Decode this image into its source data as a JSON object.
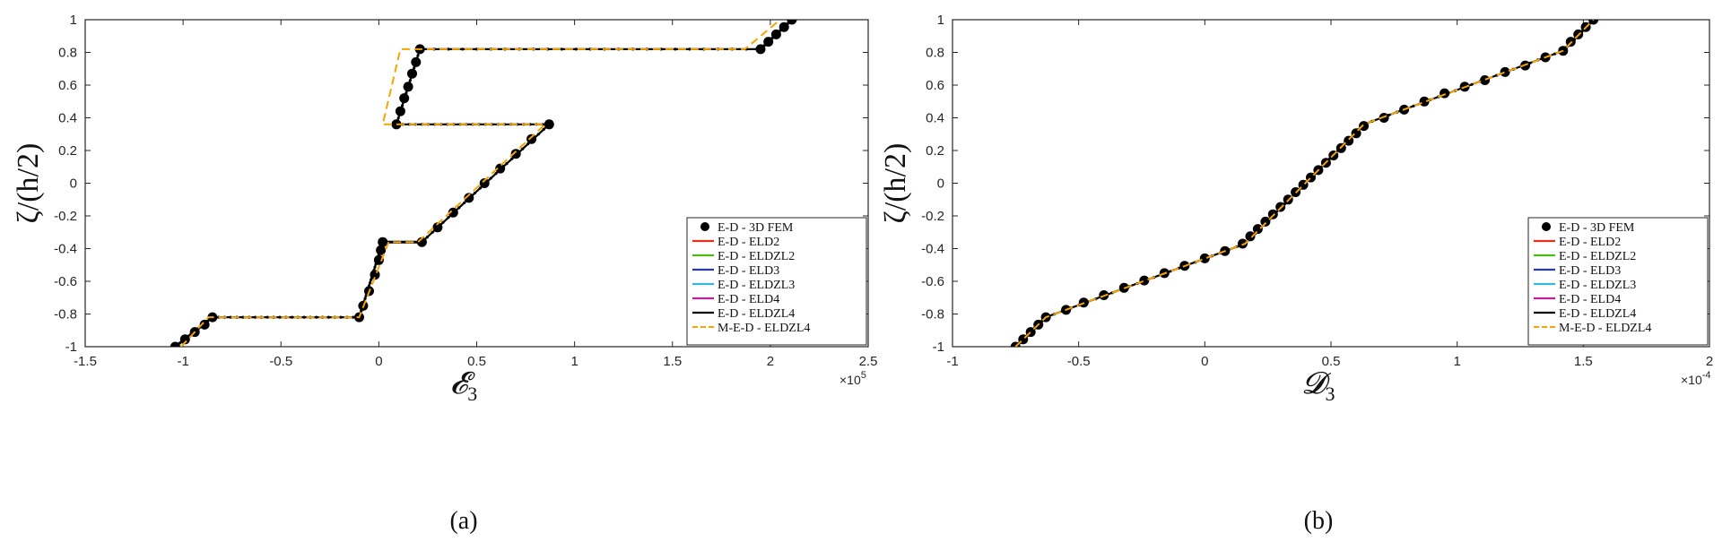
{
  "chart_data": [
    {
      "type": "line",
      "panel_label": "(a)",
      "xlabel": "𝓔",
      "xlabel_sub": "3",
      "ylabel": "ζ/(h/2)",
      "xlim": [
        -1.5,
        2.5
      ],
      "ylim": [
        -1,
        1
      ],
      "xticks": [
        -1.5,
        -1,
        -0.5,
        0,
        0.5,
        1,
        1.5,
        2,
        2.5
      ],
      "xtick_labels": [
        "-1.5",
        "-1",
        "-0.5",
        "0",
        "0.5",
        "1",
        "1.5",
        "2",
        "2.5"
      ],
      "yticks": [
        -1,
        -0.8,
        -0.6,
        -0.4,
        -0.2,
        0,
        0.2,
        0.4,
        0.6,
        0.8,
        1
      ],
      "ytick_labels": [
        "-1",
        "-0.8",
        "-0.6",
        "-0.4",
        "-0.2",
        "0",
        "0.2",
        "0.4",
        "0.6",
        "0.8",
        "1"
      ],
      "x_exponent_base": "×10",
      "x_exponent": "5",
      "grid": false,
      "legend_position": "bottom-right",
      "legend": [
        "E-D - 3D FEM",
        "E-D - ELD2",
        "E-D - ELDZL2",
        "E-D - ELD3",
        "E-D - ELDZL3",
        "E-D - ELD4",
        "E-D - ELDZL4",
        "M-E-D - ELDZL4"
      ],
      "series": [
        {
          "name": "E-D - 3D FEM",
          "style": "markers",
          "color": "#000000",
          "x": [
            -1.04,
            -0.99,
            -0.94,
            -0.89,
            -0.85,
            -0.1,
            -0.08,
            -0.05,
            -0.02,
            0.0,
            0.01,
            0.02,
            0.22,
            0.3,
            0.38,
            0.46,
            0.54,
            0.62,
            0.7,
            0.78,
            0.87,
            0.09,
            0.11,
            0.13,
            0.15,
            0.17,
            0.19,
            0.21,
            1.95,
            1.99,
            2.03,
            2.07,
            2.11
          ],
          "y": [
            -1,
            -0.955,
            -0.91,
            -0.865,
            -0.82,
            -0.82,
            -0.75,
            -0.66,
            -0.56,
            -0.47,
            -0.41,
            -0.36,
            -0.36,
            -0.27,
            -0.18,
            -0.09,
            0.0,
            0.09,
            0.18,
            0.27,
            0.36,
            0.36,
            0.44,
            0.52,
            0.59,
            0.67,
            0.74,
            0.82,
            0.82,
            0.865,
            0.91,
            0.955,
            1.0
          ]
        },
        {
          "name": "E-D - ELDZL4",
          "style": "solid",
          "color": "#000000",
          "x": [
            -1.04,
            -0.85,
            -0.1,
            0.02,
            0.22,
            0.87,
            0.09,
            0.21,
            1.95,
            2.11
          ],
          "y": [
            -1,
            -0.82,
            -0.82,
            -0.36,
            -0.36,
            0.36,
            0.36,
            0.82,
            0.82,
            1.0
          ]
        },
        {
          "name": "M-E-D - ELDZL4",
          "style": "dashed",
          "color": "#f5a300",
          "x": [
            -1.01,
            -0.87,
            -0.1,
            0.05,
            0.2,
            0.85,
            0.02,
            0.11,
            1.87,
            2.05
          ],
          "y": [
            -1,
            -0.82,
            -0.82,
            -0.36,
            -0.36,
            0.36,
            0.36,
            0.82,
            0.82,
            1.0
          ]
        }
      ]
    },
    {
      "type": "line",
      "panel_label": "(b)",
      "xlabel": "𝓓",
      "xlabel_sub": "3",
      "ylabel": "ζ/(h/2)",
      "xlim": [
        -1,
        2
      ],
      "ylim": [
        -1,
        1
      ],
      "xticks": [
        -1,
        -0.5,
        0,
        0.5,
        1,
        1.5,
        2
      ],
      "xtick_labels": [
        "-1",
        "-0.5",
        "0",
        "0.5",
        "1",
        "1.5",
        "2"
      ],
      "yticks": [
        -1,
        -0.8,
        -0.6,
        -0.4,
        -0.2,
        0,
        0.2,
        0.4,
        0.6,
        0.8,
        1
      ],
      "ytick_labels": [
        "-1",
        "-0.8",
        "-0.6",
        "-0.4",
        "-0.2",
        "0",
        "0.2",
        "0.4",
        "0.6",
        "0.8",
        "1"
      ],
      "x_exponent_base": "×10",
      "x_exponent": "-4",
      "grid": false,
      "legend_position": "bottom-right",
      "legend": [
        "E-D - 3D FEM",
        "E-D - ELD2",
        "E-D - ELDZL2",
        "E-D - ELD3",
        "E-D - ELDZL3",
        "E-D - ELD4",
        "E-D - ELDZL4",
        "M-E-D - ELDZL4"
      ],
      "series": [
        {
          "name": "E-D - 3D FEM",
          "style": "markers",
          "color": "#000000",
          "x": [
            -0.75,
            -0.72,
            -0.69,
            -0.66,
            -0.63,
            -0.55,
            -0.48,
            -0.4,
            -0.32,
            -0.24,
            -0.16,
            -0.08,
            0.0,
            0.08,
            0.15,
            0.18,
            0.21,
            0.24,
            0.27,
            0.3,
            0.33,
            0.36,
            0.39,
            0.42,
            0.45,
            0.48,
            0.51,
            0.54,
            0.57,
            0.6,
            0.63,
            0.71,
            0.79,
            0.87,
            0.95,
            1.03,
            1.11,
            1.19,
            1.27,
            1.35,
            1.42,
            1.45,
            1.48,
            1.51,
            1.54
          ],
          "y": [
            -1,
            -0.955,
            -0.91,
            -0.865,
            -0.82,
            -0.775,
            -0.73,
            -0.685,
            -0.64,
            -0.595,
            -0.55,
            -0.505,
            -0.46,
            -0.415,
            -0.37,
            -0.325,
            -0.28,
            -0.235,
            -0.19,
            -0.145,
            -0.1,
            -0.055,
            -0.01,
            0.035,
            0.08,
            0.125,
            0.17,
            0.215,
            0.26,
            0.305,
            0.35,
            0.4,
            0.45,
            0.5,
            0.55,
            0.59,
            0.63,
            0.68,
            0.72,
            0.77,
            0.81,
            0.865,
            0.91,
            0.955,
            1.0
          ]
        },
        {
          "name": "E-D - ELDZL4",
          "style": "solid",
          "color": "#000000",
          "x": [
            -0.75,
            -0.63,
            0.16,
            0.63,
            1.42,
            1.54
          ],
          "y": [
            -1,
            -0.82,
            -0.37,
            0.36,
            0.81,
            1.0
          ]
        },
        {
          "name": "M-E-D - ELDZL4",
          "style": "dashed",
          "color": "#f5a300",
          "x": [
            -0.75,
            -0.63,
            0.16,
            0.63,
            1.42,
            1.54
          ],
          "y": [
            -1,
            -0.82,
            -0.37,
            0.36,
            0.81,
            1.0
          ]
        }
      ]
    }
  ],
  "legend_colors": {
    "E-D - 3D FEM": "#000000",
    "E-D - ELD2": "#e8301c",
    "E-D - ELDZL2": "#4cbb17",
    "E-D - ELD3": "#2b3a9e",
    "E-D - ELDZL3": "#3ab7e0",
    "E-D - ELD4": "#c0209c",
    "E-D - ELDZL4": "#000000",
    "M-E-D - ELDZL4": "#f5a300"
  }
}
